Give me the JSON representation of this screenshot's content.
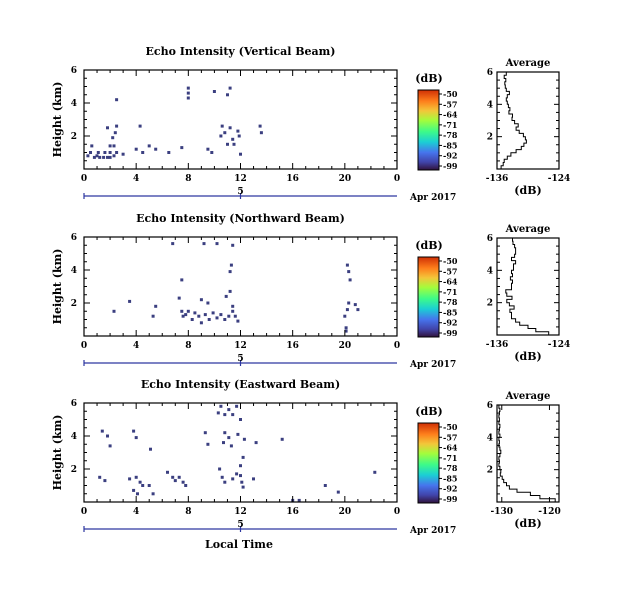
{
  "colorbar_title": "(dB)",
  "colorbar_ticks": [
    "-50",
    "-57",
    "-64",
    "-71",
    "-78",
    "-85",
    "-92",
    "-99"
  ],
  "average_title": "Average",
  "average_xlabel": "(dB)",
  "xlabel_bottom": "Local Time",
  "date_label": "Apr 2017",
  "date_day": "5",
  "colors": {
    "echo": "#3b3f80",
    "axis": "#000000",
    "date_bar": "#2d37a0"
  },
  "chart_data": [
    {
      "type": "heatmap",
      "title": "Echo Intensity (Vertical Beam)",
      "ylabel": "Height (km)",
      "xticks": [
        "0",
        "4",
        "8",
        "12",
        "16",
        "20",
        "0"
      ],
      "yticks": [
        "2",
        "4",
        "6"
      ],
      "xlim": [
        0,
        24
      ],
      "ylim": [
        0,
        6
      ],
      "echo_cells": [
        [
          0.6,
          1.4
        ],
        [
          0.5,
          1.0
        ],
        [
          0.3,
          0.8
        ],
        [
          0.8,
          0.7
        ],
        [
          1.0,
          0.8
        ],
        [
          1.2,
          0.7
        ],
        [
          1.5,
          0.7
        ],
        [
          1.8,
          0.7
        ],
        [
          2.0,
          0.7
        ],
        [
          2.3,
          0.8
        ],
        [
          1.1,
          1.0
        ],
        [
          1.6,
          1.0
        ],
        [
          2.0,
          1.0
        ],
        [
          2.5,
          1.0
        ],
        [
          2.3,
          1.4
        ],
        [
          2.4,
          2.2
        ],
        [
          2.5,
          2.6
        ],
        [
          2.5,
          4.2
        ],
        [
          1.8,
          2.5
        ],
        [
          2.2,
          1.9
        ],
        [
          2.0,
          1.4
        ],
        [
          4.3,
          2.6
        ],
        [
          3.0,
          0.9
        ],
        [
          4.0,
          1.2
        ],
        [
          4.5,
          1.0
        ],
        [
          5.0,
          1.4
        ],
        [
          5.5,
          1.2
        ],
        [
          6.5,
          1.0
        ],
        [
          7.5,
          1.3
        ],
        [
          8.0,
          4.3
        ],
        [
          8.0,
          4.6
        ],
        [
          8.0,
          4.9
        ],
        [
          9.5,
          1.2
        ],
        [
          9.8,
          1.0
        ],
        [
          10.0,
          4.7
        ],
        [
          10.5,
          2.0
        ],
        [
          10.6,
          2.6
        ],
        [
          10.8,
          2.2
        ],
        [
          11.0,
          4.5
        ],
        [
          11.2,
          4.9
        ],
        [
          11.0,
          1.5
        ],
        [
          11.2,
          2.5
        ],
        [
          11.4,
          1.8
        ],
        [
          11.5,
          1.5
        ],
        [
          11.8,
          2.3
        ],
        [
          11.9,
          2.0
        ],
        [
          13.5,
          2.6
        ],
        [
          13.6,
          2.2
        ],
        [
          12.0,
          0.9
        ]
      ]
    },
    {
      "type": "heatmap",
      "title": "Echo Intensity (Northward Beam)",
      "ylabel": "Height (km)",
      "xticks": [
        "0",
        "4",
        "8",
        "12",
        "16",
        "20",
        "0"
      ],
      "yticks": [
        "2",
        "4",
        "6"
      ],
      "xlim": [
        0,
        24
      ],
      "ylim": [
        0,
        6
      ],
      "echo_cells": [
        [
          2.3,
          1.5
        ],
        [
          3.5,
          2.1
        ],
        [
          5.3,
          1.2
        ],
        [
          5.5,
          1.8
        ],
        [
          6.8,
          5.6
        ],
        [
          7.5,
          3.4
        ],
        [
          7.3,
          2.3
        ],
        [
          7.5,
          1.5
        ],
        [
          7.6,
          1.2
        ],
        [
          7.8,
          1.3
        ],
        [
          8.0,
          1.5
        ],
        [
          8.3,
          1.0
        ],
        [
          8.5,
          1.4
        ],
        [
          8.8,
          1.2
        ],
        [
          9.0,
          0.8
        ],
        [
          9.3,
          1.3
        ],
        [
          9.6,
          1.0
        ],
        [
          9.9,
          1.4
        ],
        [
          10.2,
          1.1
        ],
        [
          10.5,
          1.3
        ],
        [
          10.8,
          1.0
        ],
        [
          11.1,
          1.2
        ],
        [
          11.4,
          1.5
        ],
        [
          11.6,
          1.2
        ],
        [
          11.8,
          0.9
        ],
        [
          11.4,
          1.8
        ],
        [
          9.5,
          2.0
        ],
        [
          10.9,
          2.4
        ],
        [
          11.2,
          2.7
        ],
        [
          11.2,
          3.9
        ],
        [
          11.3,
          4.3
        ],
        [
          11.4,
          5.5
        ],
        [
          10.2,
          5.6
        ],
        [
          9.2,
          5.6
        ],
        [
          9.0,
          2.2
        ],
        [
          20.2,
          4.3
        ],
        [
          20.3,
          3.9
        ],
        [
          20.4,
          3.4
        ],
        [
          20.3,
          2.0
        ],
        [
          20.2,
          1.6
        ],
        [
          20.0,
          1.2
        ],
        [
          20.1,
          0.5
        ],
        [
          20.1,
          0.3
        ],
        [
          20.8,
          1.9
        ],
        [
          21.0,
          1.6
        ]
      ]
    },
    {
      "type": "heatmap",
      "title": "Echo Intensity (Eastward Beam)",
      "ylabel": "Height (km)",
      "xticks": [
        "0",
        "4",
        "8",
        "12",
        "16",
        "20",
        "0"
      ],
      "yticks": [
        "2",
        "4",
        "6"
      ],
      "xlim": [
        0,
        24
      ],
      "ylim": [
        0,
        6
      ],
      "echo_cells": [
        [
          1.4,
          4.3
        ],
        [
          1.8,
          4.0
        ],
        [
          2.0,
          3.4
        ],
        [
          3.8,
          4.3
        ],
        [
          4.0,
          3.9
        ],
        [
          5.1,
          3.2
        ],
        [
          1.2,
          1.5
        ],
        [
          1.6,
          1.3
        ],
        [
          3.5,
          1.4
        ],
        [
          4.0,
          1.5
        ],
        [
          4.3,
          1.2
        ],
        [
          4.5,
          1.0
        ],
        [
          5.0,
          1.0
        ],
        [
          3.8,
          0.7
        ],
        [
          4.1,
          0.5
        ],
        [
          5.3,
          0.5
        ],
        [
          6.4,
          1.8
        ],
        [
          6.8,
          1.5
        ],
        [
          7.0,
          1.3
        ],
        [
          7.3,
          1.5
        ],
        [
          7.6,
          1.2
        ],
        [
          7.8,
          1.0
        ],
        [
          9.3,
          4.2
        ],
        [
          9.5,
          3.5
        ],
        [
          10.3,
          5.4
        ],
        [
          10.5,
          5.8
        ],
        [
          10.8,
          5.3
        ],
        [
          11.1,
          5.6
        ],
        [
          11.4,
          5.3
        ],
        [
          11.7,
          5.8
        ],
        [
          12.0,
          5.0
        ],
        [
          10.8,
          4.2
        ],
        [
          10.7,
          3.6
        ],
        [
          11.1,
          3.9
        ],
        [
          11.3,
          3.4
        ],
        [
          11.8,
          4.1
        ],
        [
          12.3,
          3.8
        ],
        [
          13.2,
          3.6
        ],
        [
          12.2,
          2.7
        ],
        [
          12.0,
          2.2
        ],
        [
          12.0,
          1.6
        ],
        [
          12.1,
          1.2
        ],
        [
          12.2,
          0.9
        ],
        [
          11.7,
          1.7
        ],
        [
          11.4,
          1.4
        ],
        [
          10.8,
          1.2
        ],
        [
          10.6,
          1.5
        ],
        [
          10.4,
          2.0
        ],
        [
          13.0,
          1.4
        ],
        [
          16.0,
          0.1
        ],
        [
          16.5,
          0.1
        ],
        [
          18.5,
          1.0
        ],
        [
          19.5,
          0.6
        ],
        [
          22.3,
          1.8
        ],
        [
          15.2,
          3.8
        ]
      ]
    },
    {
      "type": "line",
      "title": "Average",
      "xlabel": "(dB)",
      "xticks": [
        "-136",
        "-124"
      ],
      "yticks": [
        "2",
        "4",
        "6"
      ],
      "xlim": [
        -136,
        -124
      ],
      "ylim": [
        0,
        6
      ],
      "x": [
        -135.2,
        -134.8,
        -134.6,
        -134.0,
        -133.3,
        -132.3,
        -131.3,
        -130.8,
        -130.3,
        -130.5,
        -130.9,
        -131.7,
        -132.3,
        -131.9,
        -132.6,
        -133.1,
        -133.0,
        -133.7,
        -133.5,
        -133.8,
        -134.0,
        -134.2,
        -134.0,
        -133.6,
        -134.2,
        -134.4,
        -134.5,
        -134.3,
        -134.6,
        -134.2,
        -134.4
      ],
      "y": [
        0.0,
        0.2,
        0.4,
        0.6,
        0.8,
        1.0,
        1.2,
        1.4,
        1.6,
        1.8,
        2.0,
        2.2,
        2.4,
        2.6,
        2.8,
        3.0,
        3.2,
        3.4,
        3.6,
        3.8,
        4.0,
        4.2,
        4.4,
        4.6,
        4.8,
        5.0,
        5.2,
        5.4,
        5.6,
        5.8,
        6.0
      ]
    },
    {
      "type": "line",
      "title": "Average",
      "xlabel": "(dB)",
      "xticks": [
        "-136",
        "-124"
      ],
      "yticks": [
        "2",
        "4",
        "6"
      ],
      "xlim": [
        -136,
        -124
      ],
      "ylim": [
        0,
        6
      ],
      "x": [
        -126.0,
        -128.5,
        -130.0,
        -131.6,
        -132.4,
        -133.2,
        -133.2,
        -133.5,
        -132.7,
        -133.6,
        -134.1,
        -133.1,
        -134.1,
        -134.3,
        -133.2,
        -133.2,
        -133.0,
        -133.4,
        -133.0,
        -133.2,
        -132.8,
        -132.8,
        -132.4,
        -133.2,
        -132.6,
        -132.4,
        -132.4,
        -132.6,
        -132.9,
        -133.0,
        -132.8
      ],
      "y": [
        0.0,
        0.2,
        0.4,
        0.6,
        0.8,
        1.0,
        1.2,
        1.4,
        1.6,
        1.8,
        2.0,
        2.2,
        2.4,
        2.6,
        2.8,
        3.0,
        3.2,
        3.4,
        3.6,
        3.8,
        4.0,
        4.2,
        4.4,
        4.6,
        4.8,
        5.0,
        5.2,
        5.4,
        5.6,
        5.8,
        6.0
      ]
    },
    {
      "type": "line",
      "title": "Average",
      "xlabel": "(dB)",
      "xticks": [
        "-130",
        "-120"
      ],
      "yticks": [
        "2",
        "4",
        "6"
      ],
      "xlim": [
        -131,
        -118
      ],
      "ylim": [
        0,
        6
      ],
      "x": [
        -118.8,
        -122.0,
        -124.0,
        -126.8,
        -128.4,
        -129.0,
        -129.6,
        -129.9,
        -130.3,
        -130.2,
        -130.4,
        -130.6,
        -130.5,
        -130.6,
        -130.4,
        -130.2,
        -130.4,
        -130.6,
        -130.5,
        -130.6,
        -130.4,
        -130.6,
        -130.5,
        -130.4,
        -130.6,
        -130.5,
        -130.6,
        -130.5,
        -130.4,
        -130.6,
        -130.5
      ],
      "y": [
        0.0,
        0.2,
        0.4,
        0.6,
        0.8,
        1.0,
        1.2,
        1.4,
        1.6,
        1.8,
        2.0,
        2.2,
        2.4,
        2.6,
        2.8,
        3.0,
        3.2,
        3.4,
        3.6,
        3.8,
        4.0,
        4.2,
        4.4,
        4.6,
        4.8,
        5.0,
        5.2,
        5.4,
        5.6,
        5.8,
        6.0
      ]
    }
  ]
}
